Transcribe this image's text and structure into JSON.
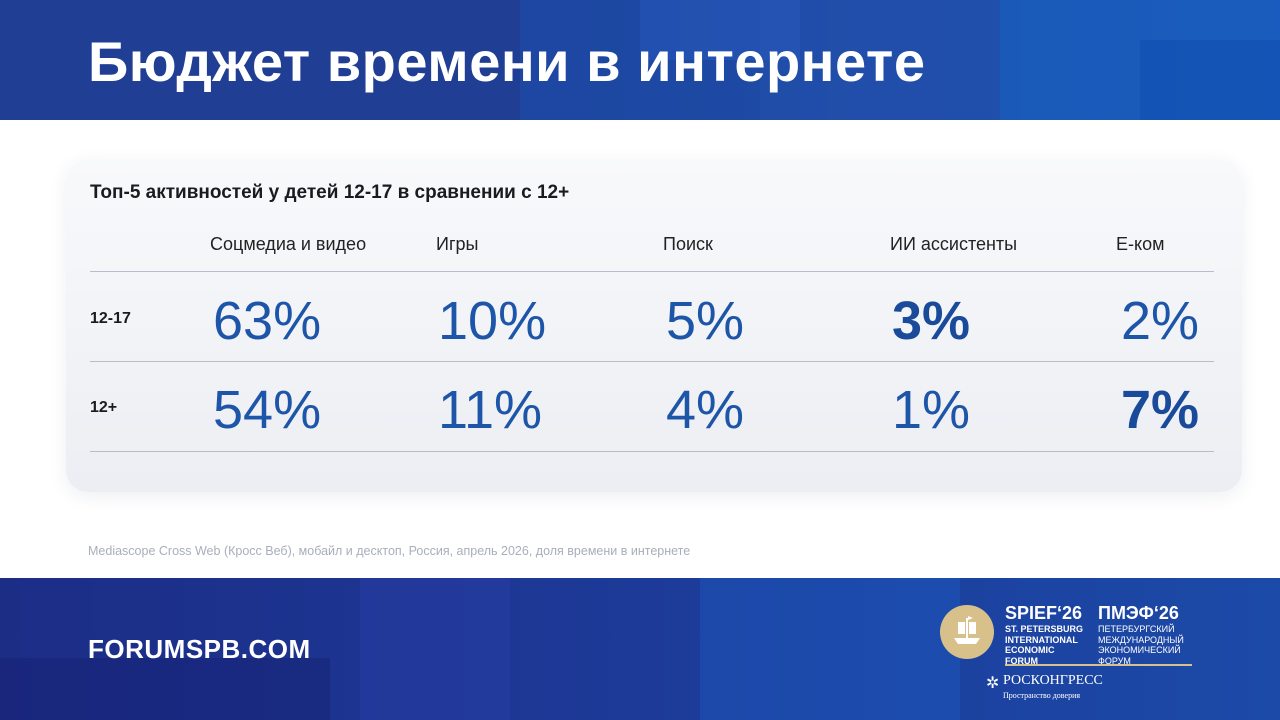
{
  "header": {
    "title": "Бюджет времени в интернете"
  },
  "table": {
    "title": "Топ-5 активностей у детей 12-17 в сравнении с 12+",
    "columns": [
      "Соцмедиа и видео",
      "Игры",
      "Поиск",
      "ИИ ассистенты",
      "Е-ком"
    ],
    "rows": [
      {
        "label": "12-17",
        "values": [
          "63%",
          "10%",
          "5%",
          "3%",
          "2%"
        ],
        "highlight_index": 3
      },
      {
        "label": "12+",
        "values": [
          "54%",
          "11%",
          "4%",
          "1%",
          "7%"
        ],
        "highlight_index": 4
      }
    ]
  },
  "footnote": "Mediascope Cross Web (Кросс Веб), мобайл и десктоп, Россия, апрель 2026, доля времени в интернете",
  "footer": {
    "site": "FORUMSPB.COM",
    "spief_title": "SPIEF‘26",
    "spief_lines": [
      "ST. PETERSBURG",
      "INTERNATIONAL",
      "ECONOMIC",
      "FORUM"
    ],
    "pmef_title": "ПМЭФ‘26",
    "pmef_lines": [
      "ПЕТЕРБУРГСКИЙ",
      "МЕЖДУНАРОДНЫЙ",
      "ЭКОНОМИЧЕСКИЙ",
      "ФОРУМ"
    ],
    "roscongress_name": "РОСКОНГРЕСС",
    "roscongress_tagline": "Пространство доверия"
  },
  "colors": {
    "brand_blue": "#1d55a8",
    "gold": "#d8c08a"
  }
}
